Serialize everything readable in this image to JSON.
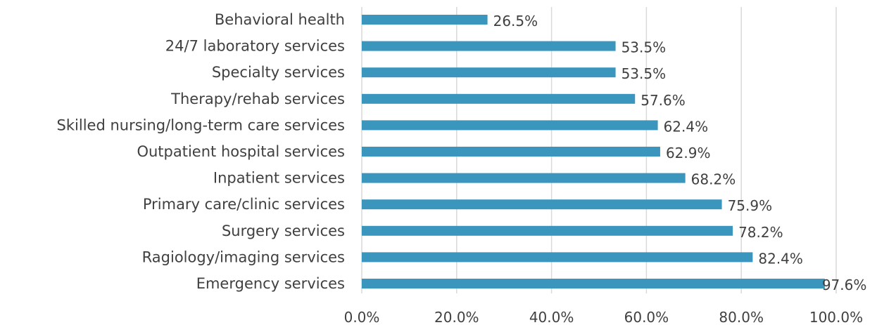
{
  "chart_data": {
    "type": "bar",
    "orientation": "horizontal",
    "categories": [
      "Behavioral health",
      "24/7 laboratory services",
      "Specialty services",
      "Therapy/rehab services",
      "Skilled nursing/long-term care services",
      "Outpatient hospital services",
      "Inpatient services",
      "Primary care/clinic services",
      "Surgery services",
      "Ragiology/imaging services",
      "Emergency services"
    ],
    "values": [
      26.5,
      53.5,
      53.5,
      57.6,
      62.4,
      62.9,
      68.2,
      75.9,
      78.2,
      82.4,
      97.6
    ],
    "value_labels": [
      "26.5%",
      "53.5%",
      "53.5%",
      "57.6%",
      "62.4%",
      "62.9%",
      "68.2%",
      "75.9%",
      "78.2%",
      "82.4%",
      "97.6%"
    ],
    "x_ticks": [
      "0.0%",
      "20.0%",
      "40.0%",
      "60.0%",
      "80.0%",
      "100.0%"
    ],
    "xlim": [
      0,
      100
    ],
    "title": "",
    "xlabel": "",
    "ylabel": "",
    "grid": "vertical",
    "legend": "none",
    "bar_color": "#3a96bd"
  }
}
